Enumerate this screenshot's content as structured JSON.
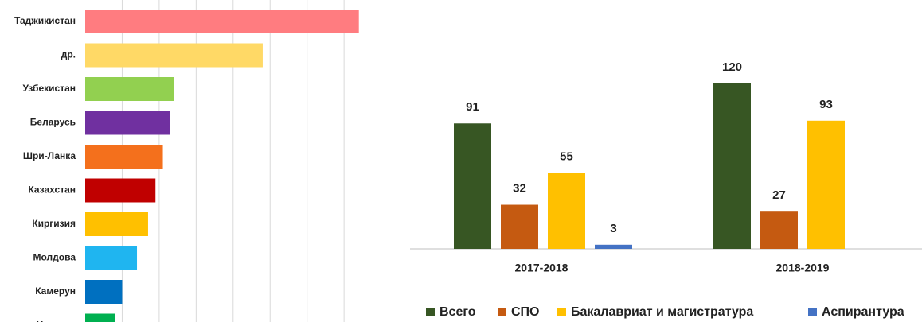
{
  "chart_data": [
    {
      "type": "bar",
      "orientation": "horizontal",
      "categories": [
        "Таджикистан",
        "др.",
        "Узбекистан",
        "Беларусь",
        "Шри-Ланка",
        "Казахстан",
        "Киргизия",
        "Молдова",
        "Камерун",
        "Нигерия"
      ],
      "values": [
        7.4,
        4.8,
        2.4,
        2.3,
        2.1,
        1.9,
        1.7,
        1.4,
        1.0,
        0.8
      ],
      "colors": [
        "#ff7c80",
        "#ffd966",
        "#92d050",
        "#7030a0",
        "#f4701c",
        "#c00000",
        "#ffc000",
        "#1fb5f0",
        "#0070c0",
        "#00b050"
      ],
      "xlim": [
        0,
        7.6
      ],
      "xticks": [
        1,
        2,
        3,
        4,
        5,
        6,
        7
      ],
      "grid": true
    },
    {
      "type": "bar",
      "categories": [
        "2017-2018",
        "2018-2019"
      ],
      "series": [
        {
          "name": "Всего",
          "color": "#375623",
          "values": [
            91,
            120
          ]
        },
        {
          "name": "СПО",
          "color": "#c55a11",
          "values": [
            32,
            27
          ]
        },
        {
          "name": "Бакалавриат и магистратура",
          "color": "#ffc000",
          "values": [
            55,
            93
          ]
        },
        {
          "name": "Аспирантура",
          "color": "#4472c4",
          "values": [
            3,
            null
          ]
        }
      ],
      "ylim": [
        0,
        120
      ],
      "legend": "bottom"
    }
  ]
}
